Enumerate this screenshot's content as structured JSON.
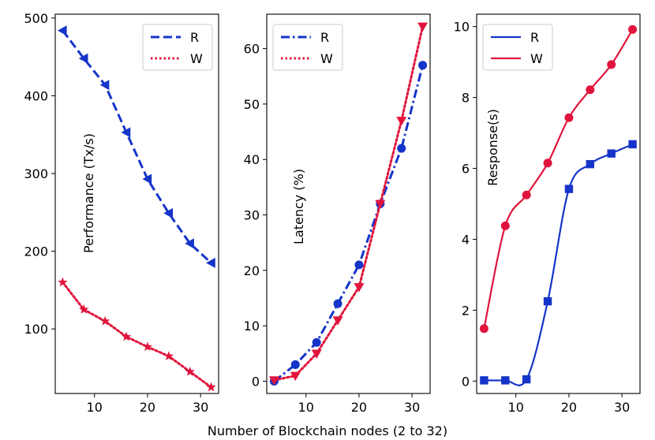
{
  "chart_data": [
    {
      "type": "line",
      "ylabel": "Performance (Tx/s)",
      "xlim": [
        2.6,
        33.4
      ],
      "ylim": [
        17,
        505
      ],
      "xticks": [
        10,
        20,
        30
      ],
      "yticks": [
        100,
        200,
        300,
        400,
        500
      ],
      "legend": "top-right",
      "series": [
        {
          "name": "R",
          "color": "#1534c9",
          "linestyle": "dashed",
          "marker": "triangle-left",
          "x": [
            4,
            8,
            12,
            16,
            20,
            24,
            28,
            32
          ],
          "y": [
            484,
            448,
            414,
            353,
            293,
            249,
            210,
            185
          ]
        },
        {
          "name": "W",
          "color": "#e0143c",
          "linestyle": "dotted",
          "marker": "star",
          "x": [
            4,
            8,
            12,
            16,
            20,
            24,
            28,
            32
          ],
          "y": [
            160,
            125,
            110,
            90,
            77,
            65,
            45,
            25
          ]
        }
      ]
    },
    {
      "type": "line",
      "ylabel": "Latency (%)",
      "xlim": [
        2.6,
        33.4
      ],
      "ylim": [
        -2.2,
        66.2
      ],
      "xticks": [
        10,
        20,
        30
      ],
      "yticks": [
        0,
        10,
        20,
        30,
        40,
        50,
        60
      ],
      "legend": "top-left",
      "series": [
        {
          "name": "R",
          "color": "#1534c9",
          "linestyle": "dashdot",
          "marker": "circle",
          "x": [
            4,
            8,
            12,
            16,
            20,
            24,
            28,
            32
          ],
          "y": [
            0,
            3,
            7,
            14,
            21,
            32,
            42,
            57
          ]
        },
        {
          "name": "W",
          "color": "#e0143c",
          "linestyle": "dotted",
          "marker": "triangle-down",
          "x": [
            4,
            8,
            12,
            16,
            20,
            24,
            28,
            32
          ],
          "y": [
            0.2,
            1,
            5,
            11,
            17,
            32,
            47,
            64
          ]
        }
      ]
    },
    {
      "type": "line",
      "ylabel": "Response(s)",
      "xlim": [
        2.6,
        33.4
      ],
      "ylim": [
        -0.35,
        10.35
      ],
      "xticks": [
        10,
        20,
        30
      ],
      "yticks": [
        0,
        2,
        4,
        6,
        8,
        10
      ],
      "legend": "top-left",
      "series": [
        {
          "name": "R",
          "color": "#1534c9",
          "linestyle": "solid",
          "marker": "square",
          "x": [
            4,
            8,
            12,
            16,
            20,
            24,
            28,
            32
          ],
          "y": [
            0.02,
            0.02,
            0.05,
            2.25,
            5.42,
            6.12,
            6.42,
            6.68
          ]
        },
        {
          "name": "W",
          "color": "#e0143c",
          "linestyle": "solid",
          "marker": "circle",
          "x": [
            4,
            8,
            12,
            16,
            20,
            24,
            28,
            32
          ],
          "y": [
            1.48,
            4.38,
            5.25,
            6.15,
            7.43,
            8.22,
            8.93,
            9.92
          ]
        }
      ]
    }
  ],
  "xlabel": "Number of Blockchain nodes (2 to 32)"
}
